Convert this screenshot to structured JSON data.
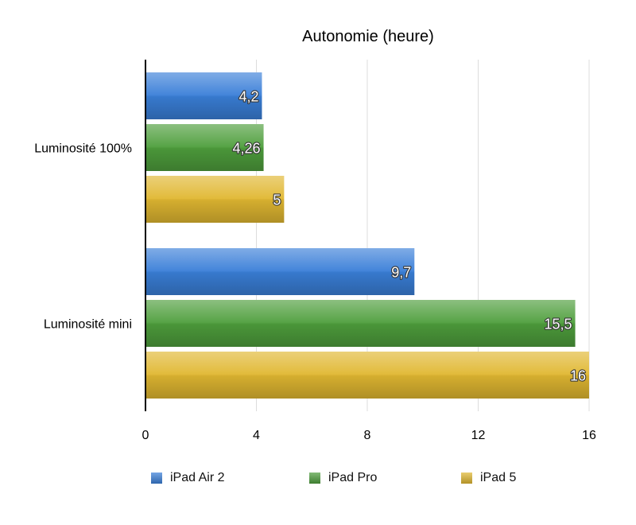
{
  "chart_data": {
    "type": "bar",
    "orientation": "horizontal",
    "title": "Autonomie (heure)",
    "categories": [
      "Luminosité 100%",
      "Luminosité mini"
    ],
    "series": [
      {
        "name": "iPad Air 2",
        "values": [
          4.2,
          9.7
        ],
        "labels": [
          "4,2",
          "9,7"
        ],
        "color": "#3a7fd8"
      },
      {
        "name": "iPad Pro",
        "values": [
          4.26,
          15.5
        ],
        "labels": [
          "4,26",
          "15,5"
        ],
        "color": "#4e9e3c"
      },
      {
        "name": "iPad 5",
        "values": [
          5,
          16
        ],
        "labels": [
          "5",
          "16"
        ],
        "color": "#e0b731"
      }
    ],
    "xlim": [
      0,
      16
    ],
    "xticks": [
      0,
      4,
      8,
      12,
      16
    ],
    "grid": true,
    "legend_position": "bottom"
  }
}
